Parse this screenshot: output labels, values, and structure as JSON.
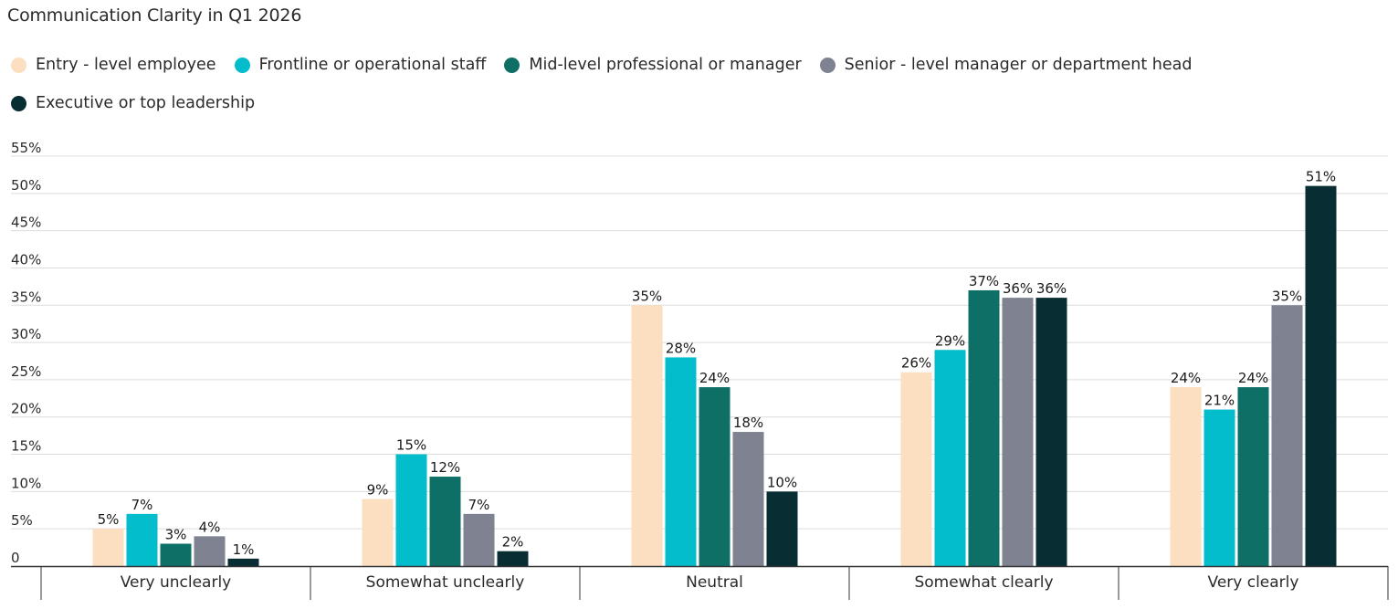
{
  "chart_data": {
    "type": "bar",
    "title": "Communication Clarity in Q1 2026",
    "xlabel": "",
    "ylabel": "",
    "ylim": [
      0,
      55
    ],
    "yticks": [
      0,
      5,
      10,
      15,
      20,
      25,
      30,
      35,
      40,
      45,
      50,
      55
    ],
    "ytick_labels": [
      "0",
      "5%",
      "10%",
      "15%",
      "20%",
      "25%",
      "30%",
      "35%",
      "40%",
      "45%",
      "50%",
      "55%"
    ],
    "grid": true,
    "legend_position": "top-left",
    "categories": [
      "Very unclearly",
      "Somewhat unclearly",
      "Neutral",
      "Somewhat clearly",
      "Very clearly"
    ],
    "series": [
      {
        "name": "Entry - level employee",
        "color": "#fbdfc0",
        "values": [
          5,
          9,
          35,
          26,
          24
        ],
        "labels": [
          "5%",
          "9%",
          "35%",
          "26%",
          "24%"
        ]
      },
      {
        "name": "Frontline or operational staff",
        "color": "#03bccc",
        "values": [
          7,
          15,
          28,
          29,
          21
        ],
        "labels": [
          "7%",
          "15%",
          "28%",
          "29%",
          "21%"
        ]
      },
      {
        "name": "Mid-level professional or manager",
        "color": "#0e6f66",
        "values": [
          3,
          12,
          24,
          37,
          24
        ],
        "labels": [
          "3%",
          "12%",
          "24%",
          "37%",
          "24%"
        ]
      },
      {
        "name": "Senior - level manager or department head",
        "color": "#7e8291",
        "values": [
          4,
          7,
          18,
          36,
          35
        ],
        "labels": [
          "4%",
          "7%",
          "18%",
          "36%",
          "35%"
        ]
      },
      {
        "name": "Executive or top leadership",
        "color": "#082d33",
        "values": [
          1,
          2,
          10,
          36,
          51
        ],
        "labels": [
          "1%",
          "2%",
          "10%",
          "36%",
          "51%"
        ]
      }
    ]
  }
}
